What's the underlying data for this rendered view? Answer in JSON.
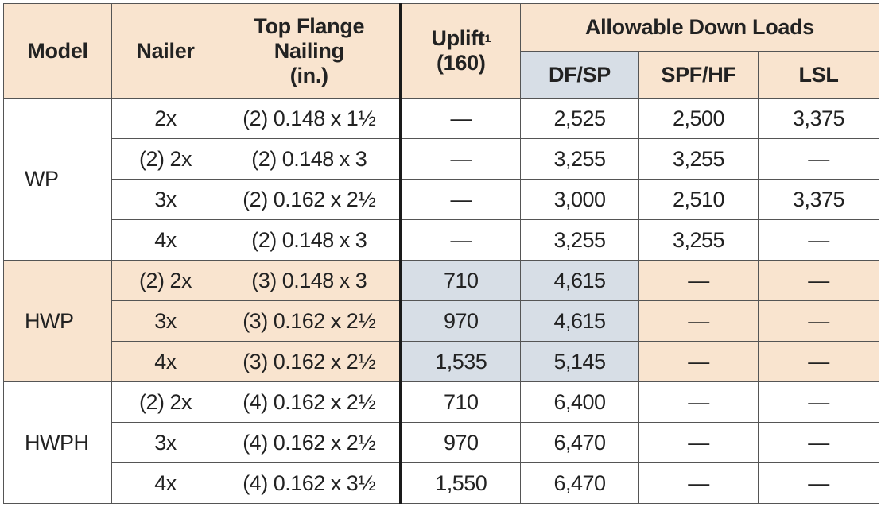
{
  "headers": {
    "model": "Model",
    "nailer": "Nailer",
    "top_flange_nailing": [
      "Top Flange",
      "Nailing",
      "(in.)"
    ],
    "uplift": "Uplift",
    "uplift_sup": "1",
    "uplift_sub": "(160)",
    "allowable_down_loads": "Allowable Down Loads",
    "df_sp": "DF/SP",
    "spf_hf": "SPF/HF",
    "lsl": "LSL"
  },
  "groups": [
    {
      "model": "WP",
      "rows": [
        {
          "nailer": "2x",
          "nailing": "(2) 0.148 x 1½",
          "uplift": "—",
          "df_sp": "2,525",
          "spf_hf": "2,500",
          "lsl": "3,375"
        },
        {
          "nailer": "(2) 2x",
          "nailing": "(2) 0.148 x 3",
          "uplift": "—",
          "df_sp": "3,255",
          "spf_hf": "3,255",
          "lsl": "—"
        },
        {
          "nailer": "3x",
          "nailing": "(2) 0.162 x 2½",
          "uplift": "—",
          "df_sp": "3,000",
          "spf_hf": "2,510",
          "lsl": "3,375"
        },
        {
          "nailer": "4x",
          "nailing": "(2) 0.148 x 3",
          "uplift": "—",
          "df_sp": "3,255",
          "spf_hf": "3,255",
          "lsl": "—"
        }
      ]
    },
    {
      "model": "HWP",
      "rows": [
        {
          "nailer": "(2) 2x",
          "nailing": "(3) 0.148 x 3",
          "uplift": "710",
          "df_sp": "4,615",
          "spf_hf": "—",
          "lsl": "—"
        },
        {
          "nailer": "3x",
          "nailing": "(3) 0.162 x 2½",
          "uplift": "970",
          "df_sp": "4,615",
          "spf_hf": "—",
          "lsl": "—"
        },
        {
          "nailer": "4x",
          "nailing": "(3) 0.162 x 2½",
          "uplift": "1,535",
          "df_sp": "5,145",
          "spf_hf": "—",
          "lsl": "—"
        }
      ]
    },
    {
      "model": "HWPH",
      "rows": [
        {
          "nailer": "(2) 2x",
          "nailing": "(4) 0.162 x 2½",
          "uplift": "710",
          "df_sp": "6,400",
          "spf_hf": "—",
          "lsl": "—"
        },
        {
          "nailer": "3x",
          "nailing": "(4) 0.162 x 2½",
          "uplift": "970",
          "df_sp": "6,470",
          "spf_hf": "—",
          "lsl": "—"
        },
        {
          "nailer": "4x",
          "nailing": "(4) 0.162 x 3½",
          "uplift": "1,550",
          "df_sp": "6,470",
          "spf_hf": "—",
          "lsl": "—"
        }
      ]
    }
  ],
  "colors": {
    "header_tan": "#f9e4cf",
    "header_blue": "#d7dee6",
    "border": "#555555"
  }
}
